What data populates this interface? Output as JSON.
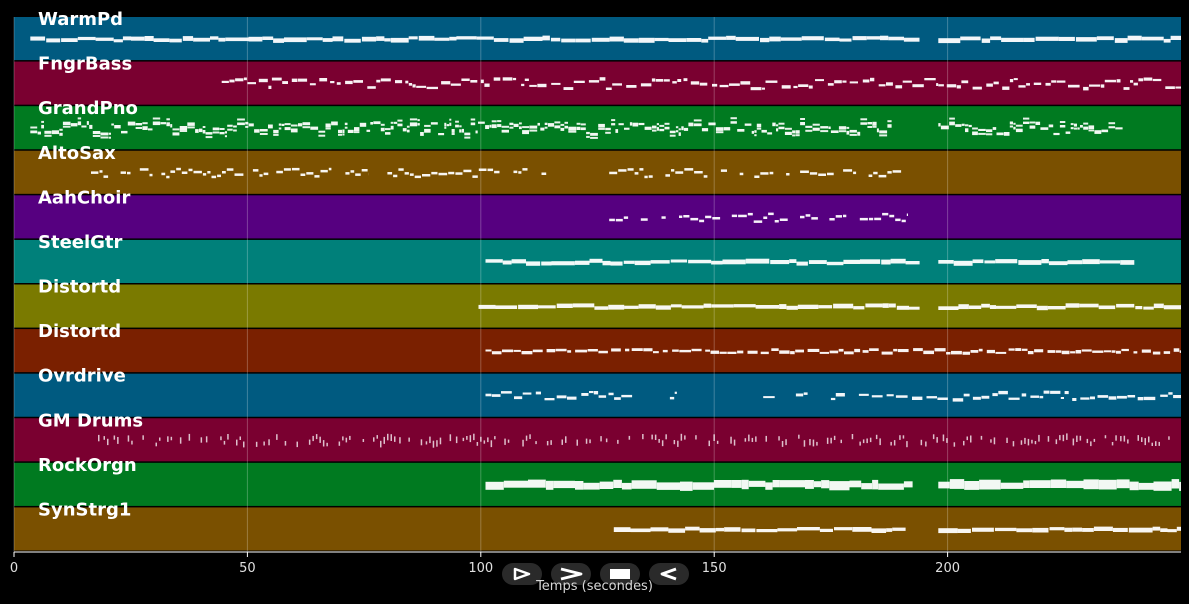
{
  "app": {
    "title": ""
  },
  "tracks": [
    {
      "name": "WarmPd",
      "color": "#005a80",
      "style": "thick",
      "segments": [
        [
          3.5,
          194
        ],
        [
          198,
          250
        ]
      ],
      "spread": 1.5
    },
    {
      "name": "FngrBass",
      "color": "#7a0030",
      "style": "thin",
      "segments": [
        [
          44.5,
          198
        ],
        [
          198,
          250
        ]
      ],
      "spread": 5
    },
    {
      "name": "GrandPno",
      "color": "#007a20",
      "style": "dense",
      "segments": [
        [
          3.5,
          188
        ],
        [
          198,
          237.5
        ]
      ],
      "spread": 6
    },
    {
      "name": "AltoSax",
      "color": "#7a5000",
      "style": "phrases",
      "segments": [
        [
          16.5,
          68
        ],
        [
          71,
          76
        ],
        [
          80,
          104
        ],
        [
          107,
          110
        ],
        [
          113,
          114
        ],
        [
          127.5,
          191.5
        ]
      ],
      "spread": 4
    },
    {
      "name": "AahChoir",
      "color": "#560080",
      "style": "phrases",
      "segments": [
        [
          127.5,
          191.5
        ]
      ],
      "spread": 4
    },
    {
      "name": "SteelGtr",
      "color": "#00807a",
      "style": "thick",
      "segments": [
        [
          101,
          194
        ],
        [
          198,
          240
        ]
      ],
      "spread": 1.5
    },
    {
      "name": "Distortd",
      "color": "#7a7a00",
      "style": "thick",
      "segments": [
        [
          99.5,
          194
        ],
        [
          198,
          250
        ]
      ],
      "spread": 1.5
    },
    {
      "name": "Distortd",
      "color": "#7a2000",
      "style": "thin",
      "segments": [
        [
          101,
          250
        ]
      ],
      "spread": 2
    },
    {
      "name": "Ovrdrive",
      "color": "#005a80",
      "style": "thin",
      "segments": [
        [
          101,
          132.5
        ],
        [
          140.5,
          142
        ],
        [
          160.5,
          163
        ],
        [
          167.5,
          170
        ],
        [
          175,
          178
        ],
        [
          181,
          250
        ]
      ],
      "spread": 4
    },
    {
      "name": "GM Drums",
      "color": "#7a0030",
      "style": "drums",
      "segments": [
        [
          18,
          250
        ]
      ],
      "spread": 4
    },
    {
      "name": "RockOrgn",
      "color": "#007a20",
      "style": "block",
      "segments": [
        [
          101,
          192.5
        ],
        [
          198,
          250
        ]
      ],
      "spread": 1.5
    },
    {
      "name": "SynStrg1",
      "color": "#7a5000",
      "style": "thick",
      "segments": [
        [
          128.5,
          191
        ],
        [
          198,
          250
        ]
      ],
      "spread": 1.2
    }
  ],
  "axis": {
    "xlabel": "Temps (secondes)",
    "ticks": [
      0,
      50,
      100,
      150,
      200
    ],
    "xlim": [
      0,
      250
    ]
  },
  "controls": [
    {
      "name": "play-button",
      "icon": "play-icon"
    },
    {
      "name": "fast-forward-button",
      "icon": "fast-forward-icon"
    },
    {
      "name": "stop-button",
      "icon": "stop-icon"
    },
    {
      "name": "rewind-button",
      "icon": "rewind-icon"
    }
  ]
}
